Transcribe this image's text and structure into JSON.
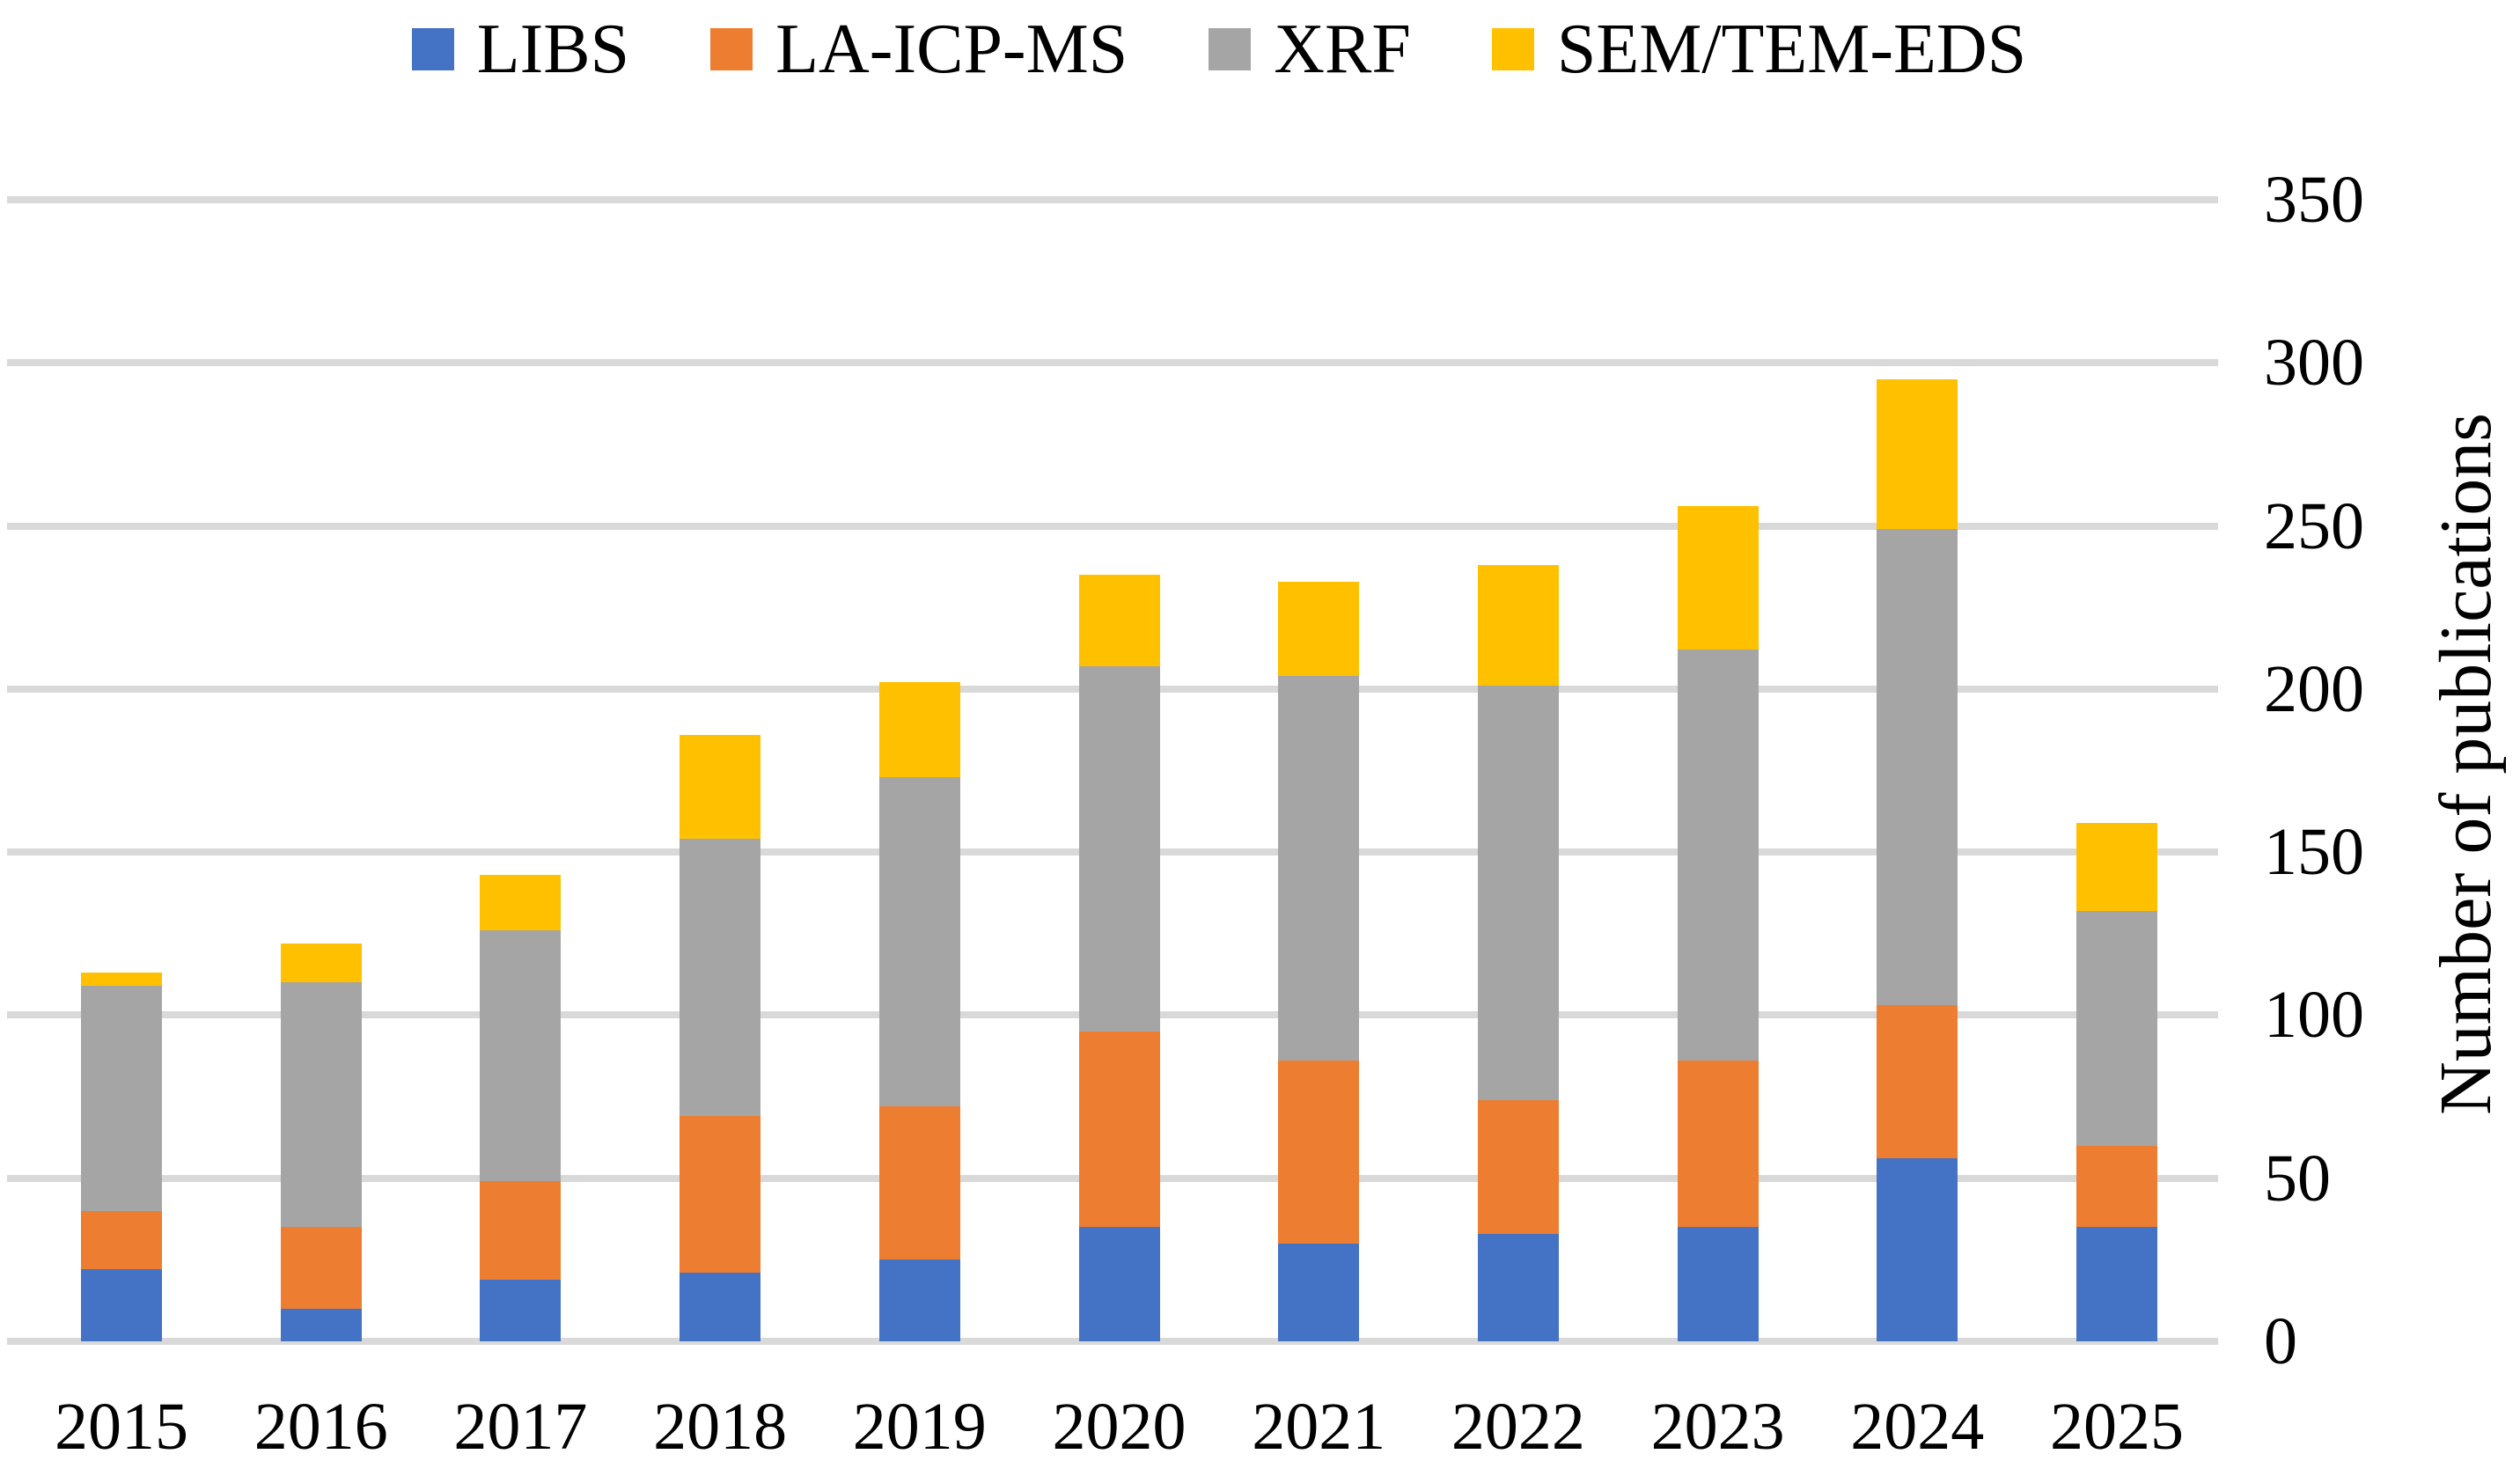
{
  "chart_data": {
    "type": "bar",
    "stacked": true,
    "title": "",
    "categories": [
      "2015",
      "2016",
      "2017",
      "2018",
      "2019",
      "2020",
      "2021",
      "2022",
      "2023",
      "2024",
      "2025"
    ],
    "series": [
      {
        "name": "LIBS",
        "color": "#4472C4",
        "values": [
          22,
          10,
          19,
          21,
          25,
          35,
          30,
          33,
          35,
          56,
          35
        ]
      },
      {
        "name": "LA-ICP-MS",
        "color": "#ED7D31",
        "values": [
          18,
          25,
          30,
          48,
          47,
          60,
          56,
          41,
          51,
          47,
          25
        ]
      },
      {
        "name": "XRF",
        "color": "#A5A5A5",
        "values": [
          69,
          75,
          77,
          85,
          101,
          112,
          118,
          127,
          126,
          146,
          72
        ]
      },
      {
        "name": "SEM/TEM-EDS",
        "color": "#FFC000",
        "values": [
          4,
          12,
          17,
          32,
          29,
          28,
          29,
          37,
          44,
          46,
          27
        ]
      }
    ],
    "xlabel": "",
    "ylabel": "Number of publications",
    "ylim": [
      0,
      350
    ],
    "ytick_step": 50,
    "yticks": [
      "0",
      "50",
      "100",
      "150",
      "200",
      "250",
      "300",
      "350"
    ],
    "legend_position": "top",
    "legend_labels": [
      "LIBS",
      "LA-ICP-MS",
      "XRF",
      "SEM/TEM-EDS"
    ],
    "grid": true,
    "colors": {
      "gridline": "#D9D9D9",
      "text": "#000000",
      "background": "#FFFFFF"
    }
  }
}
